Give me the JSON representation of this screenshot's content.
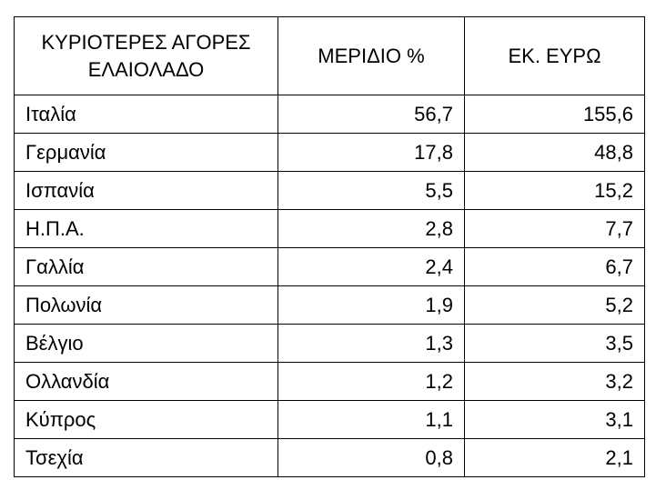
{
  "table": {
    "header": [
      "ΚΥΡΙΟΤΕΡΕΣ ΑΓΟΡΕΣ ΕΛΑΙΟΛΑΔΟ",
      "ΜΕΡΙΔΙΟ %",
      "ΕΚ. ΕΥΡΩ"
    ],
    "rows": [
      [
        "Ιταλία",
        "56,7",
        "155,6"
      ],
      [
        "Γερμανία",
        "17,8",
        "48,8"
      ],
      [
        "Ισπανία",
        "5,5",
        "15,2"
      ],
      [
        "Η.Π.Α.",
        "2,8",
        "7,7"
      ],
      [
        "Γαλλία",
        "2,4",
        "6,7"
      ],
      [
        "Πολωνία",
        "1,9",
        "5,2"
      ],
      [
        "Βέλγιο",
        "1,3",
        "3,5"
      ],
      [
        "Ολλανδία",
        "1,2",
        "3,2"
      ],
      [
        "Κύπρος",
        "1,1",
        "3,1"
      ],
      [
        "Τσεχία",
        "0,8",
        "2,1"
      ]
    ]
  }
}
